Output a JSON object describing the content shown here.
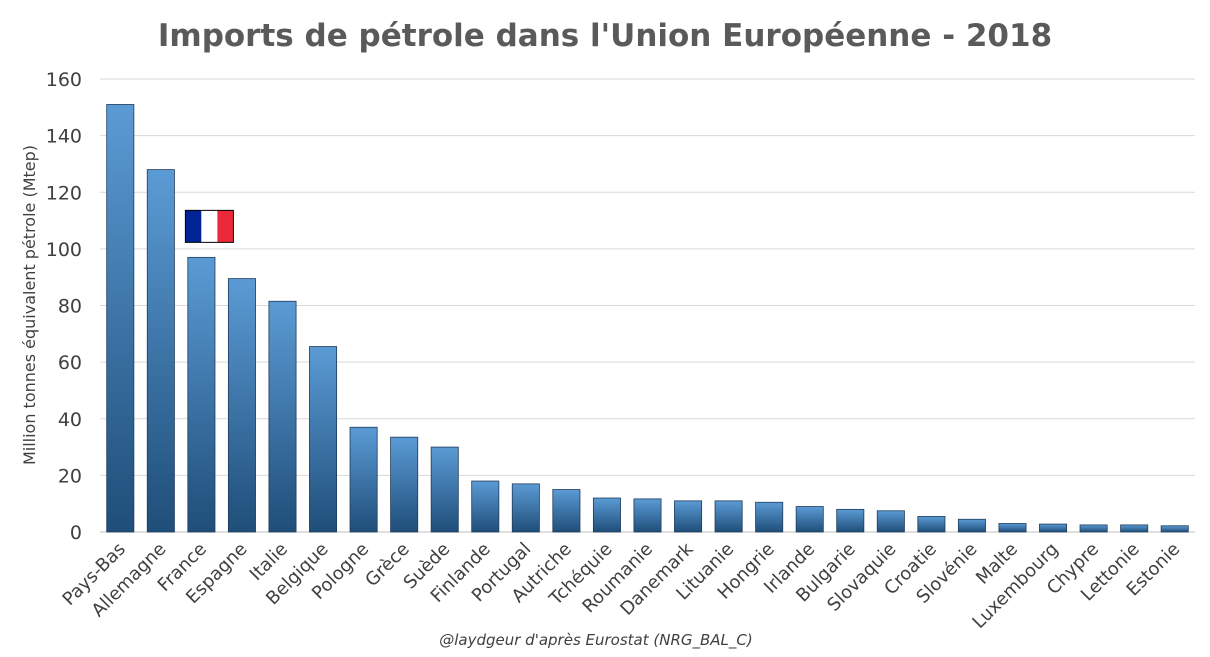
{
  "chart_data": {
    "type": "bar",
    "title": "Imports de pétrole dans l'Union Européenne - 2018",
    "ylabel": "Million tonnes équivalent  pétrole (Mtep)",
    "xlabel": "",
    "ylim": [
      0,
      160
    ],
    "yticks": [
      0,
      20,
      40,
      60,
      80,
      100,
      120,
      140,
      160
    ],
    "grid": true,
    "legend": "none",
    "bar_color_top": "#5b9bd5",
    "bar_color_bottom": "#1f4e79",
    "categories": [
      "Pays-Bas",
      "Allemagne",
      "France",
      "Espagne",
      "Italie",
      "Belgique",
      "Pologne",
      "Grèce",
      "Suède",
      "Finlande",
      "Portugal",
      "Autriche",
      "Tchéquie",
      "Roumanie",
      "Danemark",
      "Lituanie",
      "Hongrie",
      "Irlande",
      "Bulgarie",
      "Slovaquie",
      "Croatie",
      "Slovénie",
      "Malte",
      "Luxembourg",
      "Chypre",
      "Lettonie",
      "Estonie"
    ],
    "values": [
      151,
      128,
      97,
      89.5,
      81.5,
      65.5,
      37,
      33.5,
      30,
      18,
      17,
      15,
      12,
      11.7,
      11,
      11,
      10.5,
      9,
      8,
      7.5,
      5.5,
      4.5,
      3,
      2.8,
      2.5,
      2.5,
      2.2
    ],
    "annotations": [
      {
        "type": "flag",
        "name": "france-flag-icon",
        "near_category": "France",
        "colors": [
          "#002395",
          "#ffffff",
          "#ed2939"
        ]
      }
    ],
    "source": "@laydgeur d'après Eurostat (NRG_BAL_C)"
  }
}
